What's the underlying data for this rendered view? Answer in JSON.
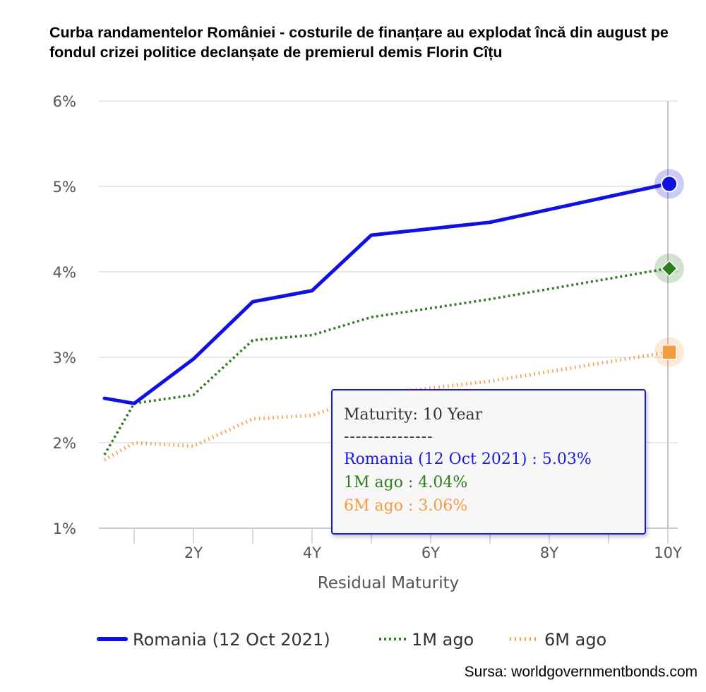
{
  "title": "Curba randamentelor României - costurile de finanțare au explodat încă din august pe fondul crizei politice declanșate de premierul demis Florin Cîțu",
  "source": "Sursa: worldgovernmentbonds.com",
  "chart_data": {
    "type": "line",
    "xlabel": "Residual Maturity",
    "ylabel": "",
    "xlim": [
      0.5,
      10
    ],
    "ylim": [
      1,
      6
    ],
    "x_ticks": [
      2,
      4,
      6,
      8,
      10
    ],
    "x_tick_labels": [
      "2Y",
      "4Y",
      "6Y",
      "8Y",
      "10Y"
    ],
    "y_ticks": [
      1,
      2,
      3,
      4,
      5,
      6
    ],
    "y_tick_labels": [
      "1%",
      "2%",
      "3%",
      "4%",
      "5%",
      "6%"
    ],
    "grid": true,
    "legend": "bottom",
    "series": [
      {
        "name": "Romania (12 Oct 2021)",
        "color": "#1010e0",
        "style": "solid",
        "marker": "circle",
        "x": [
          0.5,
          1,
          2,
          3,
          4,
          5,
          7,
          10
        ],
        "values": [
          2.52,
          2.46,
          2.98,
          3.65,
          3.78,
          4.43,
          4.58,
          5.03
        ]
      },
      {
        "name": "1M ago",
        "color": "#2e7d1f",
        "style": "dotted",
        "marker": "diamond",
        "x": [
          0.5,
          1,
          2,
          3,
          4,
          5,
          7,
          10
        ],
        "values": [
          1.86,
          2.46,
          2.56,
          3.2,
          3.26,
          3.47,
          3.68,
          4.04
        ]
      },
      {
        "name": "6M ago",
        "color": "#f49b3f",
        "style": "dotted",
        "marker": "square",
        "x": [
          0.5,
          1,
          2,
          3,
          4,
          5,
          7,
          10
        ],
        "values": [
          1.8,
          2.0,
          1.96,
          2.28,
          2.32,
          2.56,
          2.72,
          3.06
        ]
      }
    ]
  },
  "tooltip": {
    "header": "Maturity: 10 Year",
    "separator": "---------------",
    "romania": "Romania (12 Oct 2021) : 5.03%",
    "m1": "1M ago : 4.04%",
    "m6": "6M ago : 3.06%"
  }
}
